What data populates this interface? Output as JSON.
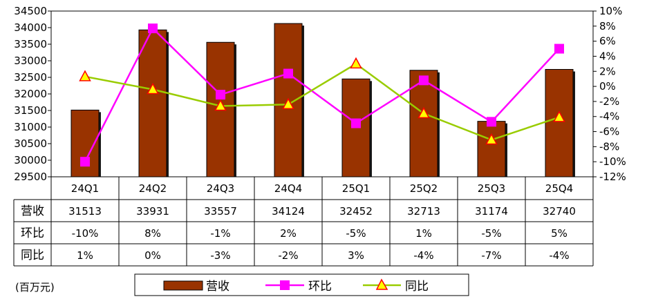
{
  "chart_data": {
    "type": "bar",
    "categories": [
      "24Q1",
      "24Q2",
      "24Q3",
      "24Q4",
      "25Q1",
      "25Q2",
      "25Q3",
      "25Q4"
    ],
    "unit_label": "(百万元)",
    "y_left": {
      "min": 29500,
      "max": 34500,
      "step": 500,
      "ticks": [
        "29500",
        "30000",
        "30500",
        "31000",
        "31500",
        "32000",
        "32500",
        "33000",
        "33500",
        "34000",
        "34500"
      ]
    },
    "y_right": {
      "min": -12,
      "max": 10,
      "step": 2,
      "ticks": [
        "-12%",
        "-10%",
        "-8%",
        "-6%",
        "-4%",
        "-2%",
        "0%",
        "2%",
        "4%",
        "6%",
        "8%",
        "10%"
      ]
    },
    "series": [
      {
        "name": "营收",
        "kind": "bar",
        "axis": "left",
        "color": "#993300",
        "values": [
          31513,
          33931,
          33557,
          34124,
          32452,
          32713,
          31174,
          32740
        ]
      },
      {
        "name": "环比",
        "kind": "line",
        "axis": "right",
        "color": "#FF00FF",
        "marker": "square",
        "values": [
          -10,
          7.7,
          -1.1,
          1.7,
          -4.9,
          0.8,
          -4.7,
          5.0
        ]
      },
      {
        "name": "同比",
        "kind": "line",
        "axis": "right",
        "color": "#99CC00",
        "marker": "triangle",
        "marker_fill": "#FFFF00",
        "marker_edge": "#FF0000",
        "values": [
          1.3,
          -0.4,
          -2.6,
          -2.4,
          3.0,
          -3.6,
          -7.1,
          -4.1
        ]
      }
    ],
    "table": {
      "rows": [
        {
          "header": "营收",
          "cells": [
            "31513",
            "33931",
            "33557",
            "34124",
            "32452",
            "32713",
            "31174",
            "32740"
          ]
        },
        {
          "header": "环比",
          "cells": [
            "-10%",
            "8%",
            "-1%",
            "2%",
            "-5%",
            "1%",
            "-5%",
            "5%"
          ]
        },
        {
          "header": "同比",
          "cells": [
            "1%",
            "0%",
            "-3%",
            "-2%",
            "3%",
            "-4%",
            "-7%",
            "-4%"
          ]
        }
      ]
    },
    "legend": {
      "placement": "bottom"
    }
  }
}
